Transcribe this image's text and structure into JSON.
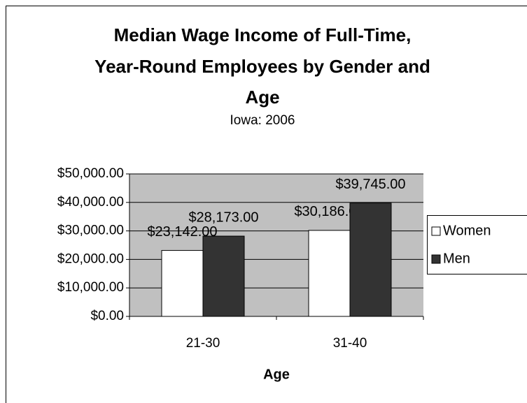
{
  "chart_data": {
    "type": "bar",
    "title": [
      "Median Wage Income of Full-Time,",
      "Year-Round Employees by Gender and",
      "Age"
    ],
    "subtitle": "Iowa: 2006",
    "x_label": "Age",
    "categories": [
      "21-30",
      "31-40"
    ],
    "series": [
      {
        "name": "Women",
        "color": "#ffffff",
        "values": [
          23142,
          30186
        ],
        "value_labels": [
          "$23,142.00",
          "$30,186.00"
        ]
      },
      {
        "name": "Men",
        "color": "#333333",
        "values": [
          28173,
          39745
        ],
        "value_labels": [
          "$28,173.00",
          "$39,745.00"
        ]
      }
    ],
    "ylim": [
      0,
      50000
    ],
    "yticks": [
      {
        "value": 0,
        "label": "$0.00"
      },
      {
        "value": 10000,
        "label": "$10,000.00"
      },
      {
        "value": 20000,
        "label": "$20,000.00"
      },
      {
        "value": 30000,
        "label": "$30,000.00"
      },
      {
        "value": 40000,
        "label": "$40,000.00"
      },
      {
        "value": 50000,
        "label": "$50,000.00"
      }
    ],
    "grid": true,
    "plot_background": "#c0c0c0",
    "legend_position": "right"
  }
}
